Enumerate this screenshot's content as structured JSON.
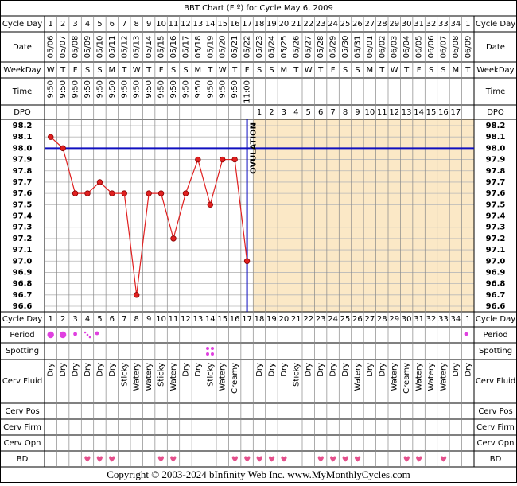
{
  "title": "BBT Chart (F º) for Cycle May 6, 2009",
  "row_labels": [
    "Cycle Day",
    "Date",
    "WeekDay",
    "Time",
    "DPO",
    "Cycle Day",
    "Period",
    "Spotting",
    "Cerv Fluid",
    "Cerv Pos",
    "Cerv Firm",
    "Cerv Opn",
    "BD"
  ],
  "footer": "Copyright © 2003-2024 bInfinity Web Inc.     www.MyMonthlyCycles.com",
  "chart_data": {
    "type": "line",
    "categories": [
      1,
      2,
      3,
      4,
      5,
      6,
      7,
      8,
      9,
      10,
      11,
      12,
      13,
      14,
      15,
      16,
      17,
      18,
      19,
      20,
      21,
      22,
      23,
      24,
      25,
      26,
      27,
      28,
      29,
      30,
      31,
      32,
      33,
      34,
      1
    ],
    "dates": [
      "05/06",
      "05/07",
      "05/08",
      "05/09",
      "05/10",
      "05/11",
      "05/12",
      "05/13",
      "05/14",
      "05/15",
      "05/16",
      "05/17",
      "05/18",
      "05/19",
      "05/20",
      "05/21",
      "05/22",
      "05/23",
      "05/24",
      "05/25",
      "05/26",
      "05/27",
      "05/28",
      "05/29",
      "05/30",
      "05/31",
      "06/01",
      "06/02",
      "06/03",
      "06/04",
      "06/05",
      "06/06",
      "06/07",
      "06/08",
      "06/09"
    ],
    "weekdays": [
      "W",
      "T",
      "F",
      "S",
      "S",
      "M",
      "T",
      "W",
      "T",
      "F",
      "S",
      "S",
      "M",
      "T",
      "W",
      "T",
      "F",
      "S",
      "S",
      "M",
      "T",
      "W",
      "T",
      "F",
      "S",
      "S",
      "M",
      "T",
      "W",
      "T",
      "F",
      "S",
      "S",
      "M",
      "T"
    ],
    "times": [
      "9:50",
      "9:50",
      "9:50",
      "9:50",
      "9:50",
      "9:50",
      "9:50",
      "9:50",
      "9:50",
      "9:50",
      "9:50",
      "9:50",
      "9:50",
      "9:50",
      "9:50",
      "9:50",
      "11:00",
      null,
      null,
      null,
      null,
      null,
      null,
      null,
      null,
      null,
      null,
      null,
      null,
      null,
      null,
      null,
      null,
      null,
      null
    ],
    "dpo": [
      null,
      null,
      null,
      null,
      null,
      null,
      null,
      null,
      null,
      null,
      null,
      null,
      null,
      null,
      null,
      null,
      null,
      1,
      2,
      3,
      4,
      5,
      6,
      7,
      8,
      9,
      10,
      11,
      12,
      13,
      14,
      15,
      16,
      17,
      null
    ],
    "cerv_fluid": [
      "Dry",
      "Dry",
      "Dry",
      "Dry",
      "Dry",
      "Dry",
      "Sticky",
      "Watery",
      "Watery",
      "Sticky",
      "Watery",
      "Dry",
      "Dry",
      "Sticky",
      "Watery",
      "Creamy",
      null,
      "Dry",
      "Dry",
      "Dry",
      "Sticky",
      "Dry",
      "Dry",
      "Dry",
      "Dry",
      "Watery",
      "Dry",
      "Dry",
      "Watery",
      "Creamy",
      "Watery",
      "Watery",
      "Watery",
      "Dry",
      "Dry"
    ],
    "series": [
      {
        "color": "#e02020",
        "values": [
          98.1,
          98.0,
          97.6,
          97.6,
          97.7,
          97.6,
          97.6,
          96.7,
          97.6,
          97.6,
          97.2,
          97.6,
          97.9,
          97.5,
          97.9,
          97.9,
          97.0,
          null,
          null,
          null,
          null,
          null,
          null,
          null,
          null,
          null,
          null,
          null,
          null,
          null,
          null,
          null,
          null,
          null,
          null
        ]
      }
    ],
    "ylim": [
      96.6,
      98.2
    ],
    "yticks": [
      98.2,
      98.1,
      {
        "value": 98.0,
        "label": "98.0"
      },
      97.9,
      97.8,
      97.7,
      97.6,
      97.5,
      97.4,
      97.3,
      97.2,
      97.1,
      {
        "value": 97.0,
        "label": "97.0"
      },
      96.9,
      96.8,
      96.7,
      96.6
    ],
    "grid": true,
    "coverline": 98.0,
    "coverline_color": "#1010c0",
    "ovulation": {
      "label": "OVULATION",
      "day": 17
    }
  }
}
